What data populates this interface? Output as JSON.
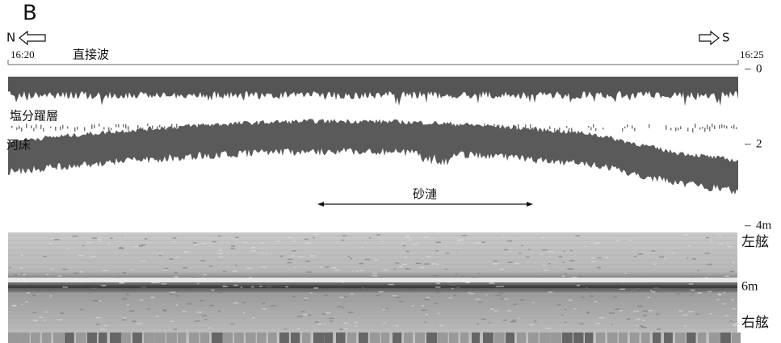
{
  "panel_label": "B",
  "direction": {
    "left": "N",
    "right": "S"
  },
  "time": {
    "start": "16:20",
    "end": "16:25"
  },
  "echogram_labels": {
    "direct_wave": "直接波",
    "halocline": "塩分躍層",
    "riverbed": "河床",
    "sand_ripples": "砂漣"
  },
  "depth_axis": {
    "ticks": [
      "0",
      "2",
      "4m"
    ]
  },
  "sonar_labels": {
    "port": "左舷",
    "range": "6m",
    "starboard": "右舷"
  }
}
